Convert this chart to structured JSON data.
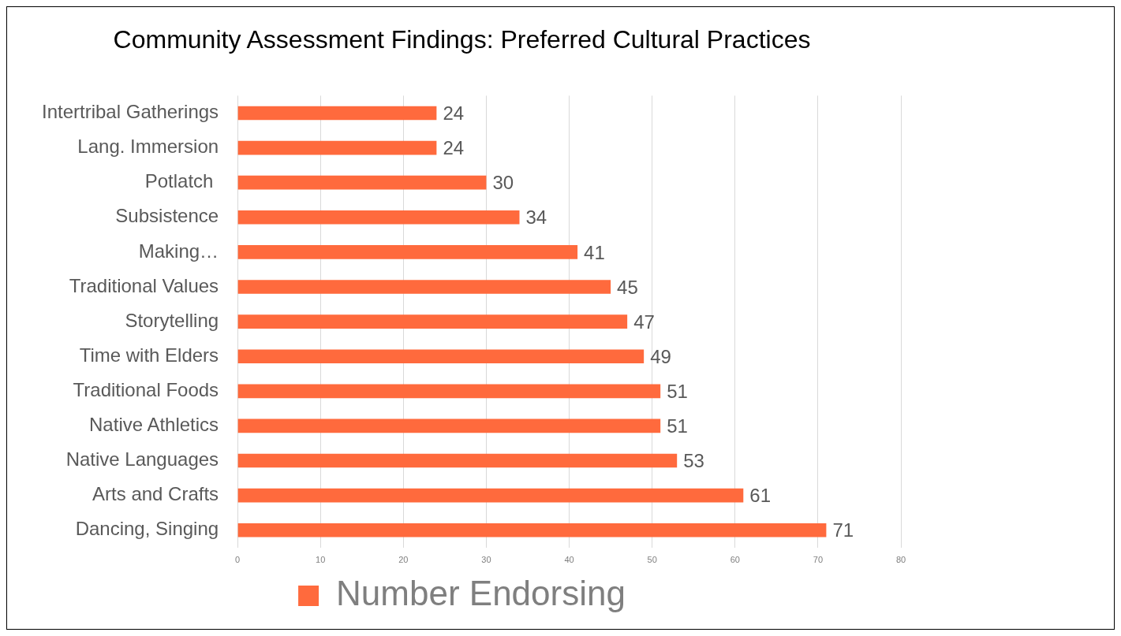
{
  "chart_data": {
    "type": "bar",
    "orientation": "horizontal",
    "title": "Community Assessment Findings: Preferred Cultural Practices",
    "categories": [
      "Intertribal Gatherings",
      "Lang. Immersion",
      "Potlatch ",
      "Subsistence",
      "Making…",
      "Traditional Values",
      "Storytelling",
      "Time with Elders",
      "Traditional Foods",
      "Native Athletics",
      "Native Languages",
      "Arts and Crafts",
      "Dancing, Singing"
    ],
    "series": [
      {
        "name": "Number Endorsing",
        "color": "#ff6a3d",
        "values": [
          24,
          24,
          30,
          34,
          41,
          45,
          47,
          49,
          51,
          51,
          53,
          61,
          71
        ]
      }
    ],
    "xlim": [
      0,
      80
    ],
    "xticks": [
      0,
      10,
      20,
      30,
      40,
      50,
      60,
      70,
      80
    ],
    "grid": "x",
    "legend": "bottom",
    "data_labels": true
  }
}
